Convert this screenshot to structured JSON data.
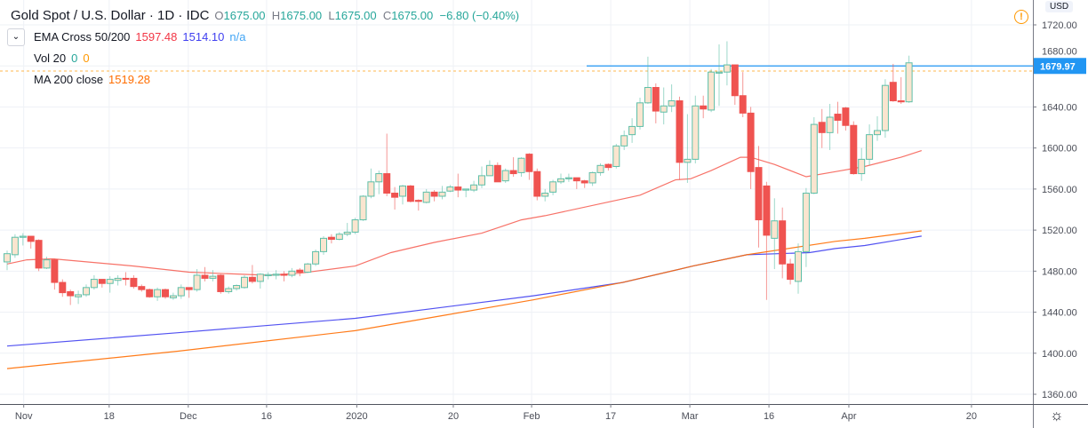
{
  "header": {
    "title": "Gold Spot / U.S. Dollar · 1D · IDC",
    "o_label": "O",
    "o": "1675.00",
    "h_label": "H",
    "h": "1675.00",
    "l_label": "L",
    "l": "1675.00",
    "c_label": "C",
    "c": "1675.00",
    "change": "−6.80 (−0.40%)"
  },
  "indicators": {
    "ema_cross": {
      "label": "EMA Cross 50/200",
      "v1": "1597.48",
      "v2": "1514.10",
      "v3": "n/a"
    },
    "vol": {
      "label": "Vol 20",
      "v1": "0",
      "v2": "0"
    },
    "ma": {
      "label": "MA 200 close",
      "v1": "1519.28"
    }
  },
  "axis": {
    "currency": "USD",
    "price_label": "1679.97",
    "alert_icon": "exclamation-circle-icon",
    "settings_icon": "gear-icon"
  },
  "chart_data": {
    "type": "candlestick",
    "ylim": [
      1340,
      1740
    ],
    "yticks": [
      "1720.00",
      "1680.00",
      "1640.00",
      "1600.00",
      "1560.00",
      "1520.00",
      "1480.00",
      "1440.00",
      "1400.00",
      "1360.00"
    ],
    "ytick_values": [
      1720,
      1680,
      1640,
      1600,
      1560,
      1520,
      1480,
      1440,
      1400,
      1360
    ],
    "xticks": [
      {
        "label": "Nov",
        "bar": 2.1
      },
      {
        "label": "18",
        "bar": 12.9
      },
      {
        "label": "Dec",
        "bar": 22.9
      },
      {
        "label": "16",
        "bar": 32.8
      },
      {
        "label": "2020",
        "bar": 44.2
      },
      {
        "label": "20",
        "bar": 56.4
      },
      {
        "label": "Feb",
        "bar": 66.3
      },
      {
        "label": "17",
        "bar": 76.3
      },
      {
        "label": "Mar",
        "bar": 86.3
      },
      {
        "label": "16",
        "bar": 96.3
      },
      {
        "label": "Apr",
        "bar": 106.4
      },
      {
        "label": "20",
        "bar": 121.9
      }
    ],
    "grid": true,
    "colors": {
      "up_body": "#fae5cf",
      "up_border": "#5dbfa8",
      "down": "#ef5350",
      "ema50": "#f44336",
      "ema200": "#3f3ff0",
      "ma200": "#ff6d00",
      "hline": "#2196f3",
      "price_line": "#ffb74d"
    },
    "horizontal_line": 1679.97,
    "last_price_line": 1675.0,
    "ohlc": [
      [
        1489,
        1500,
        1481,
        1497
      ],
      [
        1496,
        1516,
        1493,
        1513
      ],
      [
        1513,
        1517,
        1505,
        1514
      ],
      [
        1514,
        1514,
        1502,
        1509
      ],
      [
        1510,
        1511,
        1480,
        1483
      ],
      [
        1483,
        1494,
        1482,
        1491
      ],
      [
        1491,
        1492,
        1462,
        1469
      ],
      [
        1469,
        1472,
        1455,
        1459
      ],
      [
        1460,
        1462,
        1447,
        1456
      ],
      [
        1455,
        1461,
        1448,
        1457
      ],
      [
        1457,
        1467,
        1455,
        1464
      ],
      [
        1464,
        1476,
        1462,
        1472
      ],
      [
        1472,
        1472,
        1464,
        1468
      ],
      [
        1468,
        1475,
        1459,
        1472
      ],
      [
        1471,
        1476,
        1466,
        1473
      ],
      [
        1473,
        1479,
        1466,
        1472
      ],
      [
        1473,
        1476,
        1463,
        1465
      ],
      [
        1465,
        1467,
        1460,
        1462
      ],
      [
        1462,
        1463,
        1454,
        1455
      ],
      [
        1455,
        1464,
        1451,
        1462
      ],
      [
        1462,
        1463,
        1453,
        1455
      ],
      [
        1454,
        1459,
        1452,
        1456
      ],
      [
        1456,
        1467,
        1453,
        1464
      ],
      [
        1464,
        1464,
        1454,
        1462
      ],
      [
        1462,
        1482,
        1460,
        1476
      ],
      [
        1476,
        1484,
        1470,
        1473
      ],
      [
        1473,
        1481,
        1470,
        1475
      ],
      [
        1476,
        1477,
        1458,
        1460
      ],
      [
        1460,
        1465,
        1458,
        1463
      ],
      [
        1463,
        1467,
        1461,
        1466
      ],
      [
        1464,
        1476,
        1463,
        1474
      ],
      [
        1474,
        1486,
        1468,
        1470
      ],
      [
        1470,
        1478,
        1463,
        1477
      ],
      [
        1476,
        1479,
        1472,
        1476.6
      ],
      [
        1476,
        1481,
        1472,
        1477
      ],
      [
        1477,
        1480,
        1470,
        1476
      ],
      [
        1476,
        1483,
        1474,
        1480
      ],
      [
        1481,
        1483,
        1475,
        1479
      ],
      [
        1479,
        1488,
        1478,
        1487
      ],
      [
        1487,
        1501,
        1485,
        1499
      ],
      [
        1499,
        1514,
        1496,
        1512
      ],
      [
        1513,
        1516,
        1507,
        1511
      ],
      [
        1511,
        1518,
        1510,
        1516
      ],
      [
        1516,
        1527,
        1514,
        1518
      ],
      [
        1518,
        1532,
        1516,
        1530
      ],
      [
        1530,
        1554,
        1529,
        1553
      ],
      [
        1553,
        1580,
        1551,
        1567
      ],
      [
        1567,
        1578,
        1555,
        1575
      ],
      [
        1575,
        1614,
        1553,
        1556
      ],
      [
        1556,
        1562,
        1540,
        1552
      ],
      [
        1553,
        1564,
        1545,
        1563
      ],
      [
        1563,
        1564,
        1547,
        1548
      ],
      [
        1549,
        1550,
        1539,
        1548
      ],
      [
        1547,
        1560,
        1546,
        1557
      ],
      [
        1557,
        1559,
        1548,
        1553
      ],
      [
        1553,
        1563,
        1550,
        1557
      ],
      [
        1558,
        1564,
        1557,
        1562
      ],
      [
        1562,
        1575,
        1552,
        1559
      ],
      [
        1559,
        1560,
        1552,
        1560
      ],
      [
        1559,
        1568,
        1557,
        1564
      ],
      [
        1564,
        1582,
        1561,
        1573
      ],
      [
        1573,
        1588,
        1573,
        1583
      ],
      [
        1583,
        1586,
        1567,
        1567
      ],
      [
        1568,
        1580,
        1566,
        1578
      ],
      [
        1578,
        1591,
        1572,
        1575
      ],
      [
        1576,
        1591,
        1572,
        1590
      ],
      [
        1594,
        1595,
        1569,
        1577
      ],
      [
        1577,
        1580,
        1549,
        1553
      ],
      [
        1553,
        1560,
        1548,
        1556
      ],
      [
        1557,
        1569,
        1554,
        1567
      ],
      [
        1567,
        1575,
        1565,
        1570
      ],
      [
        1570,
        1575,
        1567,
        1571
      ],
      [
        1571,
        1571,
        1560,
        1568
      ],
      [
        1568,
        1569,
        1561,
        1566
      ],
      [
        1566,
        1577,
        1563,
        1576
      ],
      [
        1576,
        1585,
        1573,
        1583
      ],
      [
        1584,
        1585,
        1578,
        1581
      ],
      [
        1582,
        1604,
        1580,
        1602
      ],
      [
        1602,
        1617,
        1598,
        1612
      ],
      [
        1613,
        1629,
        1605,
        1621
      ],
      [
        1621,
        1649,
        1618,
        1644
      ],
      [
        1644,
        1689,
        1643,
        1659
      ],
      [
        1659,
        1663,
        1624,
        1636
      ],
      [
        1635,
        1659,
        1623,
        1641
      ],
      [
        1641,
        1662,
        1635,
        1646
      ],
      [
        1646,
        1650,
        1569,
        1586
      ],
      [
        1586,
        1633,
        1566,
        1589
      ],
      [
        1589,
        1651,
        1585,
        1641
      ],
      [
        1641,
        1651,
        1629,
        1638
      ],
      [
        1637,
        1677,
        1635,
        1674
      ],
      [
        1673,
        1701,
        1641,
        1674
      ],
      [
        1674,
        1704,
        1661,
        1681
      ],
      [
        1681,
        1681,
        1642,
        1651
      ],
      [
        1651,
        1674,
        1630,
        1634
      ],
      [
        1634,
        1640,
        1560,
        1577
      ],
      [
        1581,
        1602,
        1503,
        1530
      ],
      [
        1563,
        1567,
        1452,
        1515
      ],
      [
        1512,
        1551,
        1482,
        1529
      ],
      [
        1529,
        1542,
        1473,
        1487
      ],
      [
        1487,
        1492,
        1467,
        1472
      ],
      [
        1470,
        1507,
        1458,
        1499
      ],
      [
        1499,
        1561,
        1484,
        1556
      ],
      [
        1556,
        1630,
        1555,
        1623
      ],
      [
        1625,
        1638,
        1600,
        1615
      ],
      [
        1615,
        1643,
        1598,
        1630
      ],
      [
        1633,
        1645,
        1614,
        1627
      ],
      [
        1639,
        1640,
        1617,
        1622
      ],
      [
        1622,
        1626,
        1574,
        1575
      ],
      [
        1575,
        1600,
        1568,
        1589
      ],
      [
        1589,
        1623,
        1583,
        1613
      ],
      [
        1613,
        1631,
        1607,
        1617
      ],
      [
        1617,
        1667,
        1610,
        1661
      ],
      [
        1664,
        1682,
        1645,
        1646
      ],
      [
        1646,
        1669,
        1643,
        1645
      ],
      [
        1645,
        1690,
        1644,
        1683
      ]
    ],
    "series": [
      {
        "name": "EMA Cross 50",
        "points": [
          [
            0,
            1487
          ],
          [
            2.5,
            1491
          ],
          [
            5.8,
            1492
          ],
          [
            16,
            1485
          ],
          [
            23,
            1479
          ],
          [
            33,
            1476
          ],
          [
            37,
            1478
          ],
          [
            44,
            1485
          ],
          [
            48.5,
            1498
          ],
          [
            54,
            1508
          ],
          [
            60,
            1517
          ],
          [
            65,
            1530
          ],
          [
            68,
            1534
          ],
          [
            80,
            1554
          ],
          [
            84.5,
            1569
          ],
          [
            86.4,
            1570
          ],
          [
            89,
            1578
          ],
          [
            92.7,
            1591
          ],
          [
            94,
            1591
          ],
          [
            97,
            1584
          ],
          [
            101,
            1572
          ],
          [
            104.7,
            1577
          ],
          [
            108.4,
            1582
          ],
          [
            113,
            1591
          ],
          [
            115.6,
            1597.48
          ]
        ]
      },
      {
        "name": "EMA Cross 200",
        "points": [
          [
            0,
            1407
          ],
          [
            21.6,
            1420
          ],
          [
            44,
            1434
          ],
          [
            55.3,
            1445
          ],
          [
            66.5,
            1456
          ],
          [
            77.8,
            1469
          ],
          [
            86.7,
            1485
          ],
          [
            93.5,
            1496
          ],
          [
            101.4,
            1498
          ],
          [
            104.7,
            1502
          ],
          [
            108.4,
            1505
          ],
          [
            115.6,
            1514.1
          ]
        ]
      },
      {
        "name": "MA 200 close",
        "points": [
          [
            0,
            1385
          ],
          [
            21.6,
            1402
          ],
          [
            44,
            1422
          ],
          [
            55.3,
            1437
          ],
          [
            66.5,
            1452
          ],
          [
            77.8,
            1469
          ],
          [
            86.7,
            1485
          ],
          [
            93.5,
            1496
          ],
          [
            104.7,
            1509
          ],
          [
            108.4,
            1512
          ],
          [
            115.6,
            1519.28
          ]
        ]
      }
    ]
  }
}
